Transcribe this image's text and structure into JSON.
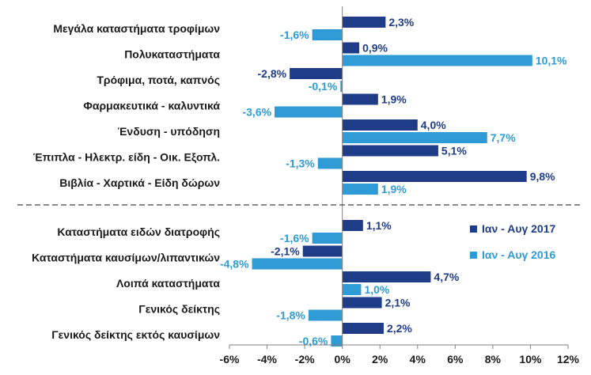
{
  "chart_data": {
    "type": "bar",
    "orientation": "horizontal",
    "categories": [
      "Μεγάλα καταστήματα τροφίμων",
      "Πολυκαταστήματα",
      "Τρόφιμα, ποτά, καπνός",
      "Φαρμακευτικά - καλυντικά",
      "Ένδυση - υπόδηση",
      "Έπιπλα - Ηλεκτρ. είδη - Οικ. Εξοπλ.",
      "Βιβλία - Χαρτικά - Είδη δώρων",
      "Καταστήματα ειδών διατροφής",
      "Καταστήματα καυσίμων/λιπαντικών",
      "Λοιπά καταστήματα",
      "Γενικός δείκτης",
      "Γενικός δείκτης εκτός καυσίμων"
    ],
    "series": [
      {
        "name": "Ιαν - Αυγ 2017",
        "color": "#1f3c88",
        "values": [
          2.3,
          0.9,
          -2.8,
          1.9,
          4.0,
          5.1,
          9.8,
          1.1,
          -2.1,
          4.7,
          2.1,
          2.2
        ],
        "labels": [
          "2,3%",
          "0,9%",
          "-2,8%",
          "1,9%",
          "4,0%",
          "5,1%",
          "9,8%",
          "1,1%",
          "-2,1%",
          "4,7%",
          "2,1%",
          "2,2%"
        ]
      },
      {
        "name": "Ιαν - Αυγ 2016",
        "color": "#2e9ad6",
        "values": [
          -1.6,
          10.1,
          -0.1,
          -3.6,
          7.7,
          -1.3,
          1.9,
          -1.6,
          -4.8,
          1.0,
          -1.8,
          -0.6
        ],
        "labels": [
          "-1,6%",
          "10,1%",
          "-0,1%",
          "-3,6%",
          "7,7%",
          "-1,3%",
          "1,9%",
          "-1,6%",
          "-4,8%",
          "1,0%",
          "-1,8%",
          "-0,6%"
        ]
      }
    ],
    "xlim": [
      -6,
      12
    ],
    "xticks": [
      -6,
      -4,
      -2,
      0,
      2,
      4,
      6,
      8,
      10,
      12
    ],
    "xtick_labels": [
      "-6%",
      "-4%",
      "-2%",
      "0%",
      "2%",
      "4%",
      "6%",
      "8%",
      "10%",
      "12%"
    ],
    "separator_after_index": 6,
    "separator_style": "dashed",
    "legend_position": "center-right",
    "grid": false,
    "title": "",
    "xlabel": "",
    "ylabel": ""
  }
}
